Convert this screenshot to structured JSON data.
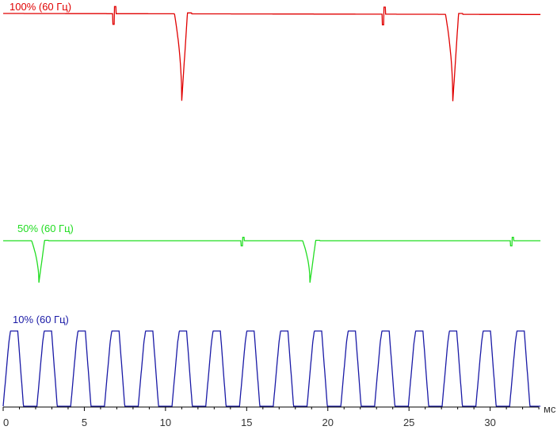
{
  "chart_data": {
    "type": "line",
    "xlabel": "мс",
    "xlim": [
      0,
      33
    ],
    "x_ticks": [
      0,
      5,
      10,
      15,
      20,
      25,
      30
    ],
    "grid": false,
    "legend": "inline-labels",
    "series": [
      {
        "name": "100% (60 Гц)",
        "color": "#e00000",
        "baseline": 1.0,
        "pulse_min": 0.0,
        "dips_ms": [
          11.0,
          27.7
        ],
        "glitches_ms": [
          6.8,
          23.4
        ]
      },
      {
        "name": "50% (60 Гц)",
        "color": "#22dd22",
        "baseline": 1.0,
        "pulse_min": 0.0,
        "dips_ms": [
          2.2,
          18.9
        ],
        "glitches_ms": [
          14.7,
          31.3
        ]
      },
      {
        "name": "10% (60 Гц)",
        "color": "#1a1aa6",
        "baseline": 0.0,
        "pulse_max": 1.0,
        "pulse_period_ms": 2.08,
        "first_pulse_ms": 0.0,
        "pulse_width_ms": 0.9
      }
    ]
  }
}
